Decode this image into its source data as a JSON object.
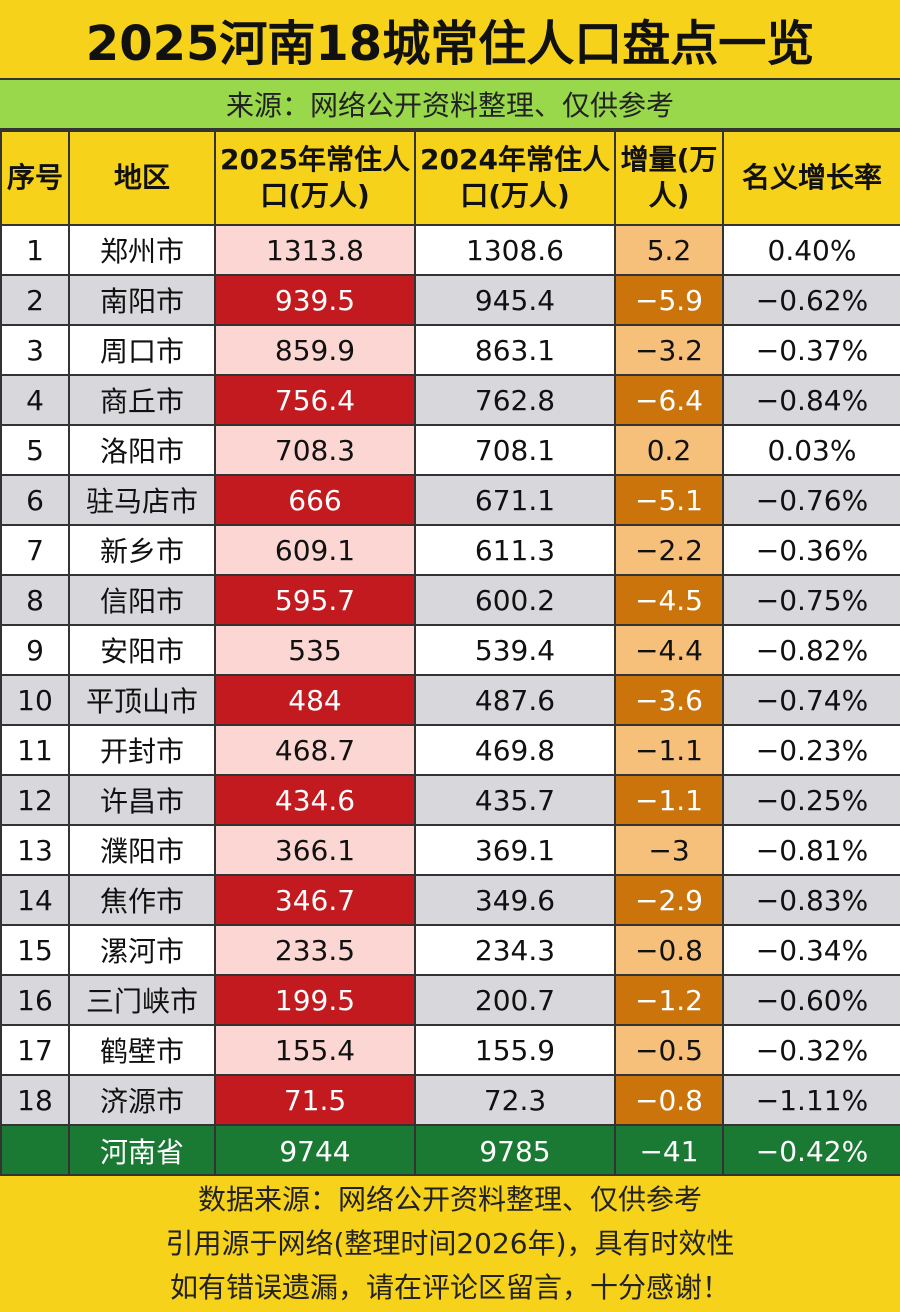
{
  "title": "2025河南18城常住人口盘点一览",
  "subtitle": "来源：网络公开资料整理、仅供参考",
  "header": {
    "col1": "序号",
    "col2": "地区",
    "col3": "2025年常住人口(万人)",
    "col4": "2024年常住人口(万人)",
    "col5": "增量(万人)",
    "col6": "名义增长率"
  },
  "rows": [
    {
      "no": "1",
      "region": "郑州市",
      "p2025": "1313.8",
      "p2024": "1308.6",
      "delta": "5.2",
      "rate": "0.40%"
    },
    {
      "no": "2",
      "region": "南阳市",
      "p2025": "939.5",
      "p2024": "945.4",
      "delta": "−5.9",
      "rate": "−0.62%"
    },
    {
      "no": "3",
      "region": "周口市",
      "p2025": "859.9",
      "p2024": "863.1",
      "delta": "−3.2",
      "rate": "−0.37%"
    },
    {
      "no": "4",
      "region": "商丘市",
      "p2025": "756.4",
      "p2024": "762.8",
      "delta": "−6.4",
      "rate": "−0.84%"
    },
    {
      "no": "5",
      "region": "洛阳市",
      "p2025": "708.3",
      "p2024": "708.1",
      "delta": "0.2",
      "rate": "0.03%"
    },
    {
      "no": "6",
      "region": "驻马店市",
      "p2025": "666",
      "p2024": "671.1",
      "delta": "−5.1",
      "rate": "−0.76%"
    },
    {
      "no": "7",
      "region": "新乡市",
      "p2025": "609.1",
      "p2024": "611.3",
      "delta": "−2.2",
      "rate": "−0.36%"
    },
    {
      "no": "8",
      "region": "信阳市",
      "p2025": "595.7",
      "p2024": "600.2",
      "delta": "−4.5",
      "rate": "−0.75%"
    },
    {
      "no": "9",
      "region": "安阳市",
      "p2025": "535",
      "p2024": "539.4",
      "delta": "−4.4",
      "rate": "−0.82%"
    },
    {
      "no": "10",
      "region": "平顶山市",
      "p2025": "484",
      "p2024": "487.6",
      "delta": "−3.6",
      "rate": "−0.74%"
    },
    {
      "no": "11",
      "region": "开封市",
      "p2025": "468.7",
      "p2024": "469.8",
      "delta": "−1.1",
      "rate": "−0.23%"
    },
    {
      "no": "12",
      "region": "许昌市",
      "p2025": "434.6",
      "p2024": "435.7",
      "delta": "−1.1",
      "rate": "−0.25%"
    },
    {
      "no": "13",
      "region": "濮阳市",
      "p2025": "366.1",
      "p2024": "369.1",
      "delta": "−3",
      "rate": "−0.81%"
    },
    {
      "no": "14",
      "region": "焦作市",
      "p2025": "346.7",
      "p2024": "349.6",
      "delta": "−2.9",
      "rate": "−0.83%"
    },
    {
      "no": "15",
      "region": "漯河市",
      "p2025": "233.5",
      "p2024": "234.3",
      "delta": "−0.8",
      "rate": "−0.34%"
    },
    {
      "no": "16",
      "region": "三门峡市",
      "p2025": "199.5",
      "p2024": "200.7",
      "delta": "−1.2",
      "rate": "−0.60%"
    },
    {
      "no": "17",
      "region": "鹤壁市",
      "p2025": "155.4",
      "p2024": "155.9",
      "delta": "−0.5",
      "rate": "−0.32%"
    },
    {
      "no": "18",
      "region": "济源市",
      "p2025": "71.5",
      "p2024": "72.3",
      "delta": "−0.8",
      "rate": "−1.11%"
    }
  ],
  "total": {
    "region": "河南省",
    "p2025": "9744",
    "p2024": "9785",
    "delta": "−41",
    "rate": "−0.42%"
  },
  "footer": {
    "line1": "数据来源：网络公开资料整理、仅供参考",
    "line2": "引用源于网络(整理时间2026年)，具有时效性",
    "line3": "如有错误遗漏，请在评论区留言，十分感谢！"
  },
  "colors": {
    "title_bg": "#f7d21a",
    "subtitle_bg": "#99d84a",
    "highlight_red": "#c21a1f",
    "light_pink": "#fbd6d2",
    "light_orange": "#f6c07a",
    "dark_orange": "#cc740c",
    "total_green": "#1a7a34",
    "stripe_gray": "#d8d8dc"
  }
}
